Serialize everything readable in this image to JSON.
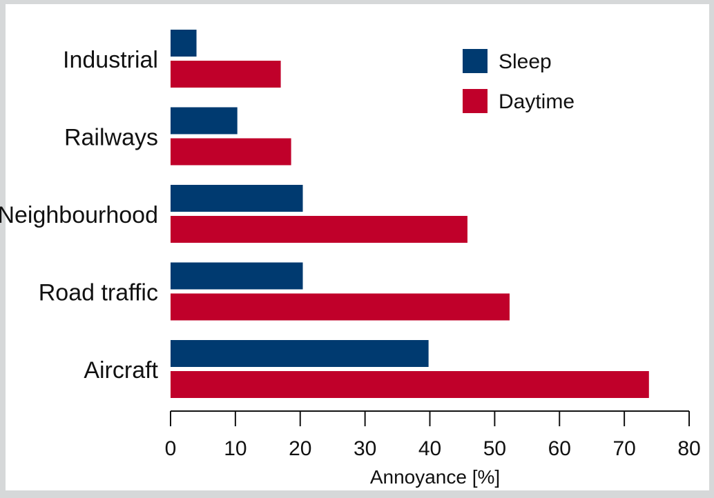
{
  "chart_data": {
    "type": "bar",
    "orientation": "horizontal",
    "categories": [
      "Industrial",
      "Railways",
      "Neighbourhood",
      "Road traffic",
      "Aircraft"
    ],
    "series": [
      {
        "name": "Sleep",
        "color": "#003a70",
        "values": [
          4,
          10.3,
          20.4,
          20.4,
          39.8
        ]
      },
      {
        "name": "Daytime",
        "color": "#c0002a",
        "values": [
          17,
          18.6,
          45.8,
          52.3,
          73.8
        ]
      }
    ],
    "xlabel": "Annoyance [%]",
    "xlim": [
      0,
      80
    ],
    "xticks": [
      0,
      10,
      20,
      30,
      40,
      50,
      60,
      70,
      80
    ],
    "grid": false,
    "legend_position": "top-right",
    "background_color": "#d6d8d9",
    "plot_background_color": "#ffffff"
  }
}
